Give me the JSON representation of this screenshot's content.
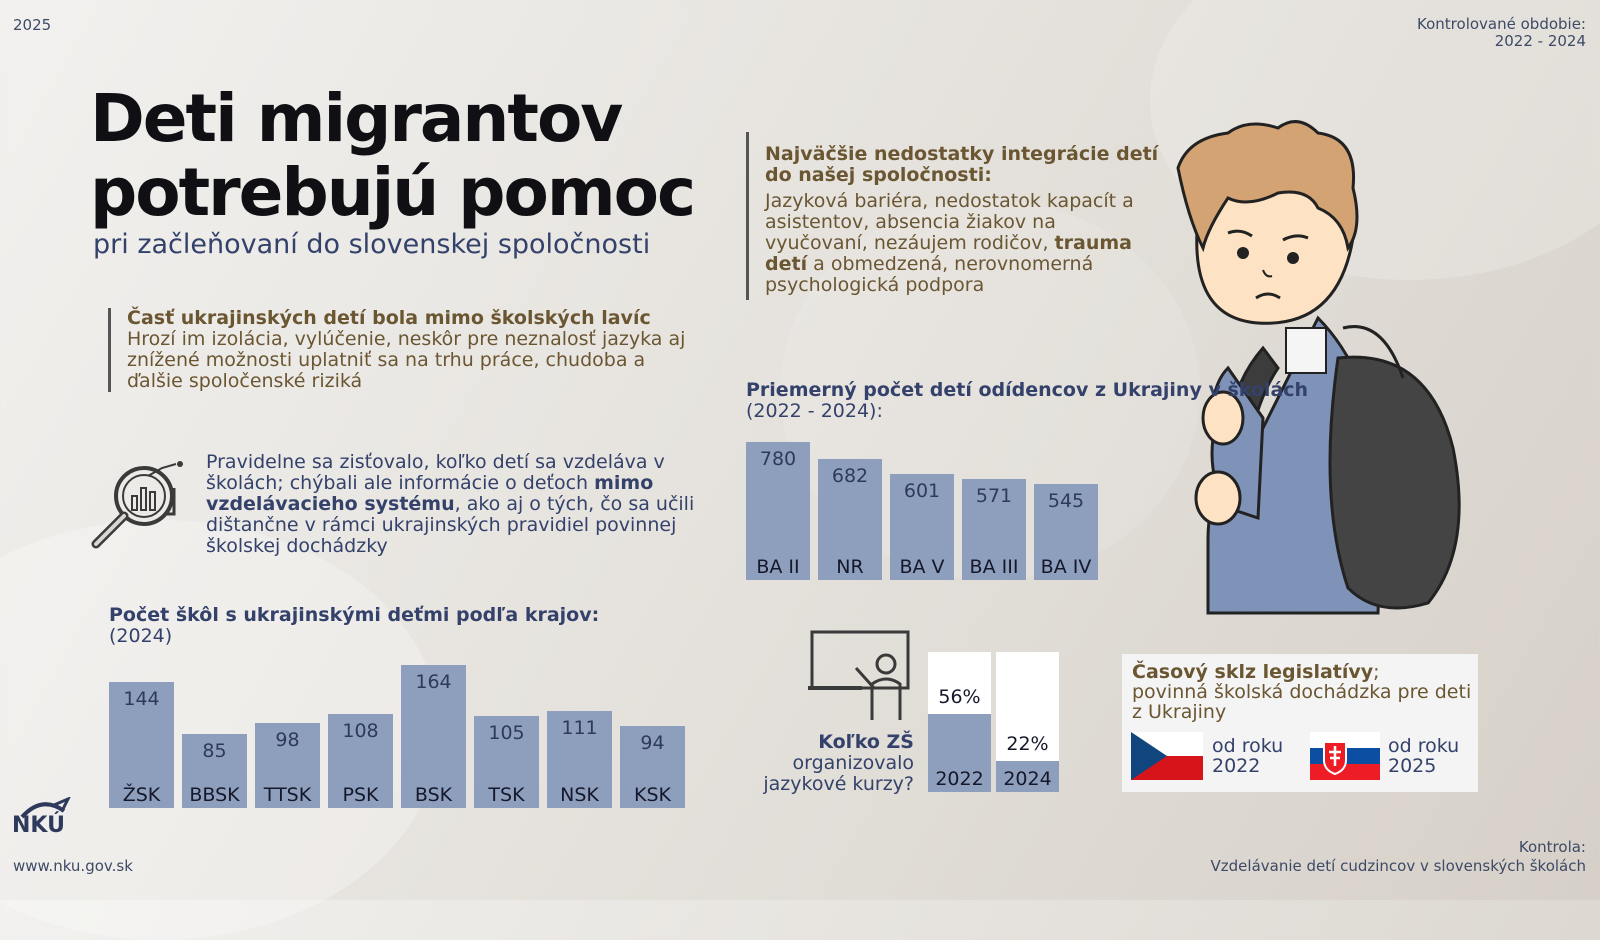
{
  "header": {
    "year": "2025",
    "period_label": "Kontrolované obdobie:",
    "period_value": "2022 - 2024"
  },
  "title": {
    "line1": "Deti migrantov",
    "line2": "potrebujú pomoc",
    "subtitle": "pri začleňovaní do slovenskej spoločnosti"
  },
  "finding1": {
    "heading": "Časť ukrajinských detí bola mimo školských lavíc",
    "body": "Hrozí im izolácia, vylúčenie, neskôr pre neznalosť jazyka aj znížené možnosti uplatniť sa na trhu práce, chudoba a ďalšie spoločenské riziká"
  },
  "finding2": {
    "part1": "Pravidelne sa zisťovalo, koľko detí sa vzdeláva v školách; chýbali ale informácie o deťoch ",
    "bold": "mimo vzdelávacieho systému",
    "part2": ", ako aj o tých, čo sa učili dištančne v rámci ukrajinských pravidiel povinnej školskej dochádzky"
  },
  "finding3": {
    "heading": "Najväčšie nedostatky integrácie detí do našej spoločnosti:",
    "part1": "Jazyková bariéra, nedostatok kapacít a asistentov, absencia žiakov na vyučovaní, nezáujem rodičov, ",
    "bold": "trauma detí",
    "part2": " a obmedzená, nerovnomerná psychologická podpora"
  },
  "courses": {
    "question": "Koľko ZŠ",
    "question_rest": "organizovalo jazykové kurzy?"
  },
  "legislation": {
    "heading": "Časový sklz legislatívy",
    "heading_sep": ";",
    "body": "povinná školská dochádzka pre deti z Ukrajiny",
    "cz": "od roku 2022",
    "sk": "od roku 2025"
  },
  "footer": {
    "logo": "NKÚ",
    "url": "www.nku.gov.sk",
    "control_label": "Kontrola:",
    "control_value": "Vzdelávanie detí cudzincov v slovenských školách"
  },
  "colors": {
    "bar": "#8e9fbd",
    "navy": "#34426b",
    "brown": "#6b5632"
  },
  "chart_data": [
    {
      "type": "bar",
      "title": "Počet škôl s ukrajinskými deťmi podľa krajov:",
      "subtitle": "(2024)",
      "categories": [
        "ŽSK",
        "BBSK",
        "TTSK",
        "PSK",
        "BSK",
        "TSK",
        "NSK",
        "KSK"
      ],
      "values": [
        144,
        85,
        98,
        108,
        164,
        105,
        111,
        94
      ]
    },
    {
      "type": "bar",
      "title": "Priemerný počet detí odídencov z Ukrajiny v školách",
      "subtitle": "(2022 - 2024):",
      "categories": [
        "BA II",
        "NR",
        "BA V",
        "BA III",
        "BA IV"
      ],
      "values": [
        780,
        682,
        601,
        571,
        545
      ]
    },
    {
      "type": "bar",
      "title": "Koľko ZŠ organizovalo jazykové kurzy?",
      "categories": [
        "2022",
        "2024"
      ],
      "values": [
        56,
        22
      ],
      "value_labels": [
        "56%",
        "22%"
      ],
      "ylim": [
        0,
        100
      ]
    }
  ]
}
